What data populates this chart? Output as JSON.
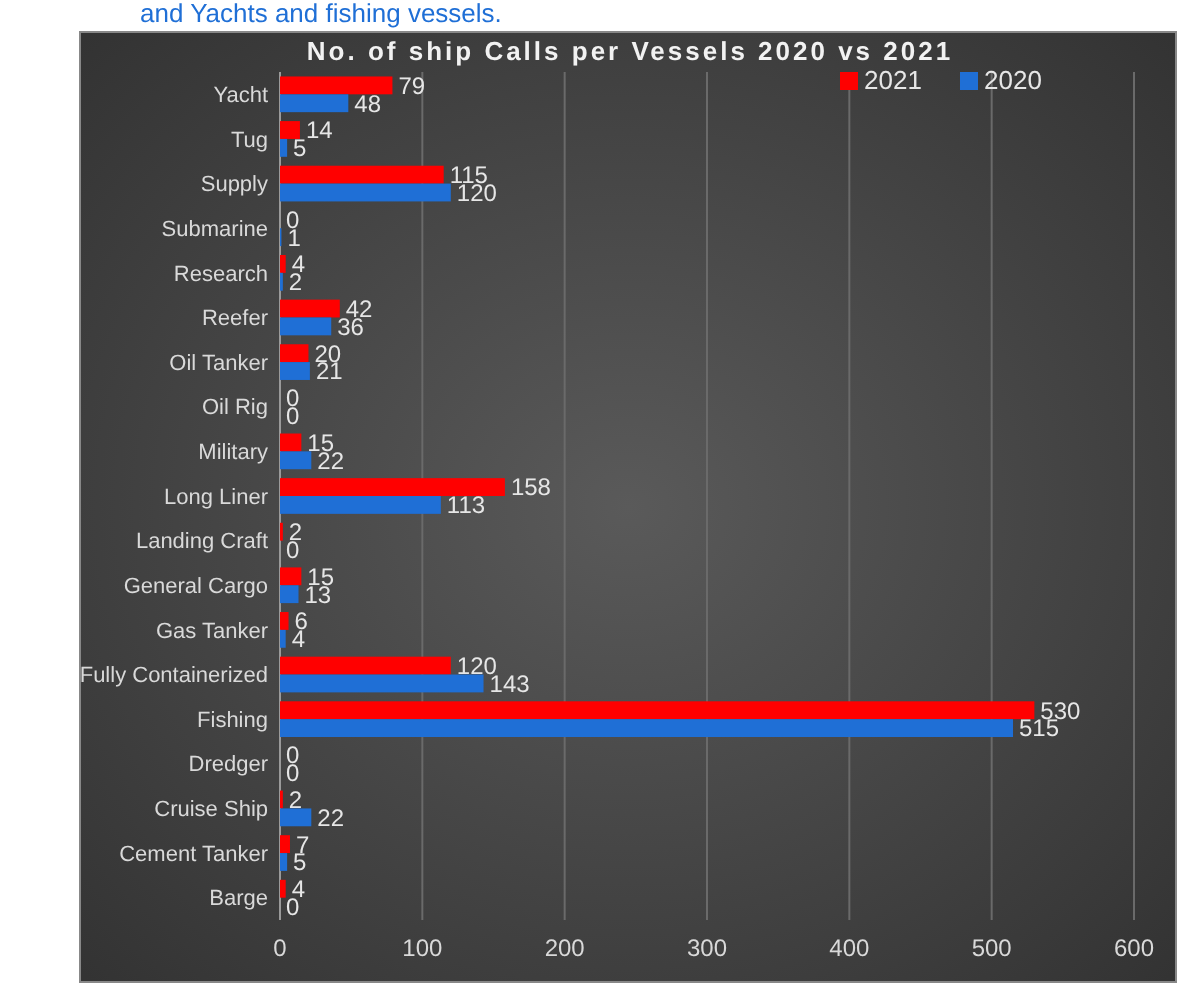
{
  "chart_data": {
    "type": "bar",
    "orientation": "horizontal",
    "title": "No. of ship Calls per Vessels 2020 vs 2021",
    "annotations": [
      "and Yachts and fishing vessels."
    ],
    "categories": [
      "Yacht",
      "Tug",
      "Supply",
      "Submarine",
      "Research",
      "Reefer",
      "Oil Tanker",
      "Oil Rig",
      "Military",
      "Long Liner",
      "Landing Craft",
      "General Cargo",
      "Gas Tanker",
      "Fully Containerized",
      "Fishing",
      "Dredger",
      "Cruise Ship",
      "Cement Tanker",
      "Barge"
    ],
    "series": [
      {
        "name": "2021",
        "color": "#ff0000",
        "values": [
          79,
          14,
          115,
          0,
          4,
          42,
          20,
          0,
          15,
          158,
          2,
          15,
          6,
          120,
          530,
          0,
          2,
          7,
          4
        ]
      },
      {
        "name": "2020",
        "color": "#1f6fd6",
        "values": [
          48,
          5,
          120,
          1,
          2,
          36,
          21,
          0,
          22,
          113,
          0,
          13,
          4,
          143,
          515,
          0,
          22,
          5,
          0
        ]
      }
    ],
    "xlim": [
      0,
      600
    ],
    "xticks": [
      0,
      100,
      200,
      300,
      400,
      500,
      600
    ],
    "grid": "x",
    "legend": "top right",
    "data_labels": true
  }
}
